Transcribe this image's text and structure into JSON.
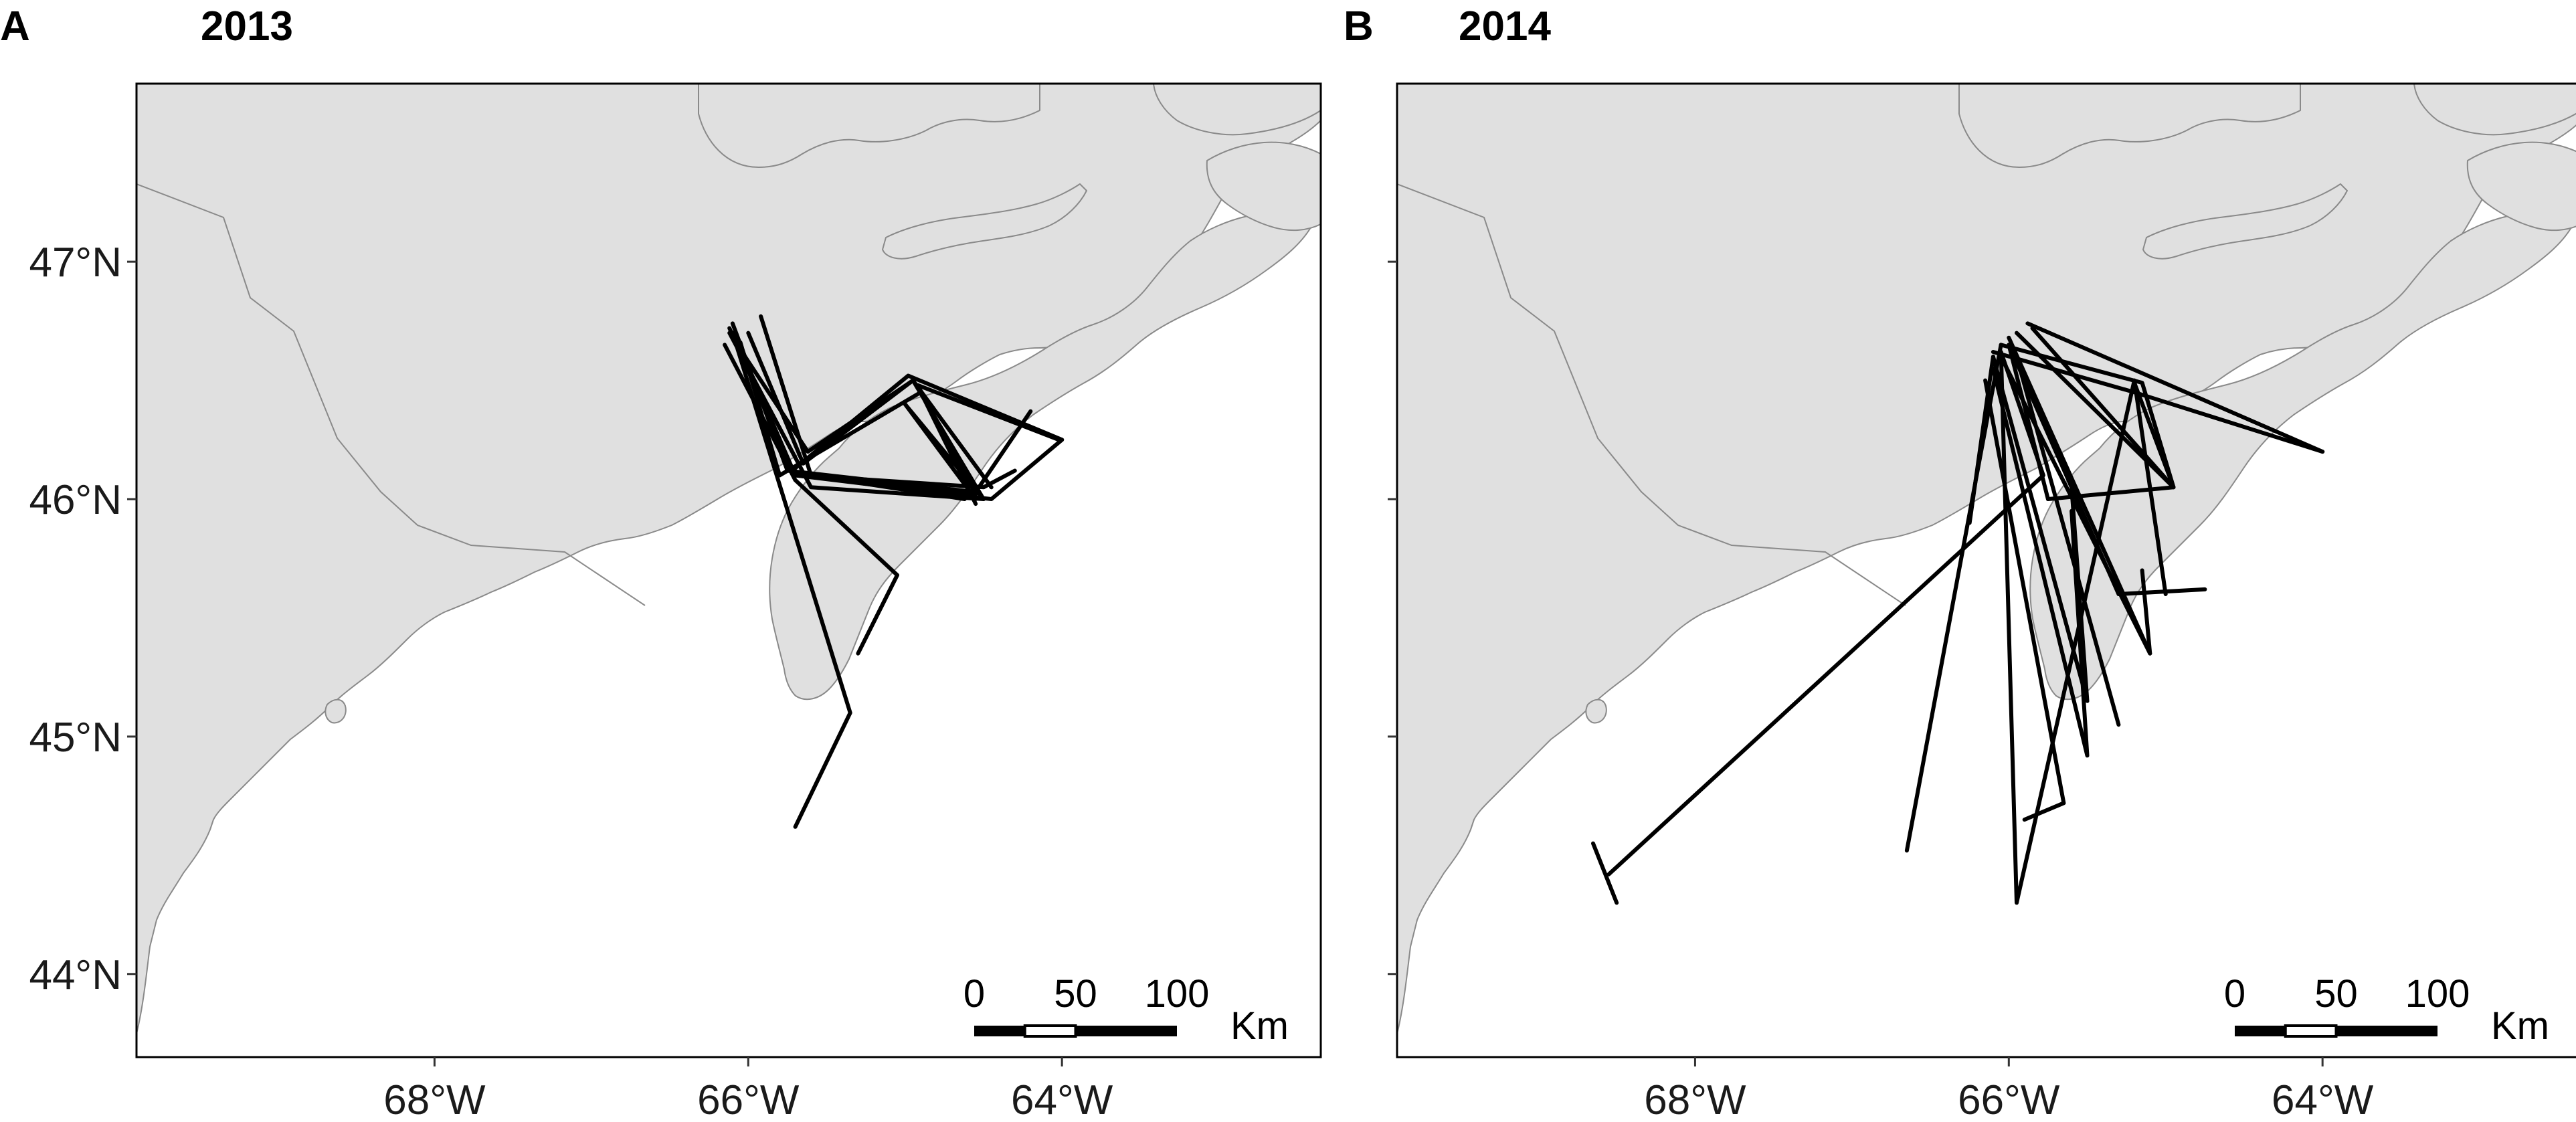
{
  "figure": {
    "panels": [
      {
        "letter": "A",
        "year": "2013",
        "show_y_labels": true,
        "tracks": [
          [
            [
              -66.1,
              46.74
            ],
            [
              -65.75,
              46.12
            ],
            [
              -64.55,
              46.03
            ],
            [
              -64.2,
              46.37
            ]
          ],
          [
            [
              -66.08,
              46.68
            ],
            [
              -65.7,
              46.1
            ],
            [
              -64.45,
              46.0
            ],
            [
              -64.0,
              46.25
            ]
          ],
          [
            [
              -66.0,
              46.7
            ],
            [
              -65.65,
              46.15
            ],
            [
              -64.95,
              46.5
            ],
            [
              -64.45,
              46.05
            ]
          ],
          [
            [
              -66.05,
              46.66
            ],
            [
              -65.8,
              46.1
            ],
            [
              -64.9,
              46.45
            ],
            [
              -64.55,
              45.98
            ]
          ],
          [
            [
              -66.12,
              46.72
            ],
            [
              -65.72,
              46.12
            ],
            [
              -64.98,
              46.52
            ],
            [
              -64.0,
              46.25
            ]
          ],
          [
            [
              -65.7,
              46.1
            ],
            [
              -64.55,
              46.02
            ],
            [
              -64.92,
              46.48
            ],
            [
              -64.02,
              46.25
            ]
          ],
          [
            [
              -65.65,
              46.1
            ],
            [
              -64.5,
              46.05
            ],
            [
              -64.3,
              46.12
            ]
          ],
          [
            [
              -66.15,
              46.65
            ],
            [
              -65.7,
              46.08
            ],
            [
              -65.05,
              45.68
            ],
            [
              -65.3,
              45.35
            ]
          ],
          [
            [
              -66.1,
              46.7
            ],
            [
              -65.35,
              45.1
            ],
            [
              -65.7,
              44.62
            ]
          ],
          [
            [
              -65.92,
              46.77
            ],
            [
              -65.6,
              46.1
            ],
            [
              -64.62,
              46.0
            ]
          ],
          [
            [
              -66.12,
              46.7
            ],
            [
              -65.6,
              46.05
            ],
            [
              -64.5,
              46.0
            ],
            [
              -65.0,
              46.4
            ],
            [
              -64.55,
              46.0
            ]
          ],
          [
            [
              -66.1,
              46.68
            ],
            [
              -65.62,
              46.2
            ],
            [
              -64.95,
              46.5
            ],
            [
              -64.5,
              46.0
            ]
          ]
        ]
      },
      {
        "letter": "B",
        "year": "2014",
        "show_y_labels": false,
        "tracks": [
          [
            [
              -68.65,
              44.55
            ],
            [
              -68.5,
              44.3
            ]
          ],
          [
            [
              -68.55,
              44.42
            ],
            [
              -65.78,
              46.1
            ],
            [
              -66.05,
              46.62
            ]
          ],
          [
            [
              -66.05,
              46.65
            ],
            [
              -65.15,
              46.49
            ],
            [
              -64.95,
              46.05
            ],
            [
              -65.75,
              46.0
            ],
            [
              -66.0,
              46.65
            ]
          ],
          [
            [
              -65.88,
              46.74
            ],
            [
              -64.0,
              46.2
            ]
          ],
          [
            [
              -65.85,
              46.72
            ],
            [
              -64.95,
              46.05
            ],
            [
              -65.2,
              46.49
            ]
          ],
          [
            [
              -66.0,
              46.68
            ],
            [
              -65.1,
              45.35
            ],
            [
              -65.15,
              45.7
            ]
          ],
          [
            [
              -66.1,
              46.6
            ],
            [
              -65.5,
              45.15
            ],
            [
              -65.6,
              46.05
            ]
          ],
          [
            [
              -66.05,
              46.6
            ],
            [
              -65.1,
              45.35
            ]
          ],
          [
            [
              -66.15,
              46.5
            ],
            [
              -65.65,
              44.72
            ],
            [
              -65.9,
              44.65
            ]
          ],
          [
            [
              -66.1,
              46.6
            ],
            [
              -66.25,
              45.9
            ]
          ],
          [
            [
              -66.05,
              46.65
            ],
            [
              -66.65,
              44.52
            ]
          ],
          [
            [
              -66.05,
              46.62
            ],
            [
              -65.95,
              44.3
            ],
            [
              -65.2,
              46.5
            ],
            [
              -65.0,
              45.6
            ]
          ],
          [
            [
              -66.0,
              46.65
            ],
            [
              -65.3,
              45.6
            ],
            [
              -64.75,
              45.62
            ]
          ],
          [
            [
              -66.1,
              46.55
            ],
            [
              -65.5,
              44.92
            ],
            [
              -65.6,
              45.95
            ]
          ],
          [
            [
              -65.95,
              46.6
            ],
            [
              -65.3,
              45.05
            ]
          ],
          [
            [
              -66.1,
              46.62
            ],
            [
              -65.2,
              46.45
            ],
            [
              -64.0,
              46.2
            ]
          ],
          [
            [
              -65.95,
              46.7
            ],
            [
              -64.95,
              46.05
            ]
          ]
        ]
      }
    ],
    "axes": {
      "x_ticks": [
        -68,
        -66,
        -64
      ],
      "y_ticks": [
        44,
        45,
        46,
        47
      ],
      "x_labels": [
        "68°W",
        "66°W",
        "64°W"
      ],
      "y_labels": [
        "44°N",
        "45°N",
        "46°N",
        "47°N"
      ],
      "lon_range": [
        -69.9,
        -62.35
      ],
      "lat_range": [
        43.65,
        47.75
      ]
    },
    "scale_bar": {
      "labels": [
        "0",
        "50",
        "100"
      ],
      "unit": "Km",
      "length_km": 100
    },
    "colors": {
      "land": "#e0e0e0",
      "coast": "#8a8a8a",
      "water": "#ffffff",
      "track": "#000000"
    }
  }
}
